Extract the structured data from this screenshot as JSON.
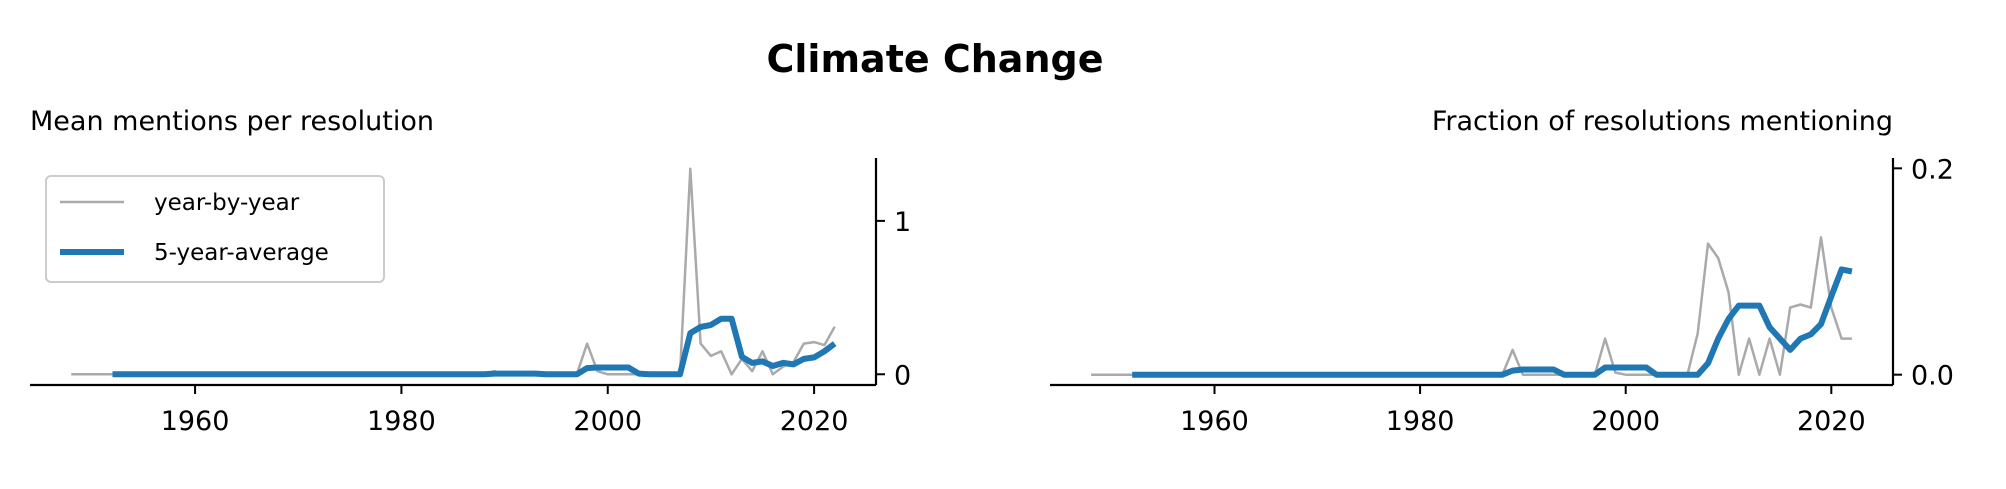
{
  "figure": {
    "title": "Climate Change"
  },
  "chart_data": [
    {
      "type": "line",
      "title": "Mean mentions per resolution",
      "xlabel": "",
      "ylabel": "",
      "xlim": [
        1944,
        2026
      ],
      "ylim": [
        -0.07,
        1.41
      ],
      "xticks": [
        1960,
        1980,
        2000,
        2020
      ],
      "yticks": [
        0,
        1
      ],
      "ytick_labels": [
        "0",
        "1"
      ],
      "y_axis_side": "right",
      "grid": false,
      "legend": {
        "placement": "top-left",
        "entries": [
          "year-by-year",
          "5-year-average"
        ]
      },
      "series": [
        {
          "name": "year-by-year",
          "color": "#aaaaaa",
          "x": [
            1948,
            1950,
            1952,
            1954,
            1956,
            1958,
            1960,
            1962,
            1964,
            1966,
            1968,
            1970,
            1972,
            1974,
            1976,
            1978,
            1980,
            1982,
            1984,
            1986,
            1988,
            1989,
            1990,
            1991,
            1992,
            1993,
            1994,
            1995,
            1996,
            1997,
            1998,
            1999,
            2000,
            2001,
            2002,
            2003,
            2004,
            2005,
            2006,
            2007,
            2008,
            2009,
            2010,
            2011,
            2012,
            2013,
            2014,
            2015,
            2016,
            2017,
            2018,
            2019,
            2020,
            2021,
            2022
          ],
          "y": [
            0,
            0,
            0,
            0,
            0,
            0,
            0,
            0,
            0,
            0,
            0,
            0,
            0,
            0,
            0,
            0,
            0,
            0,
            0,
            0,
            0,
            0.02,
            0,
            0,
            0,
            0,
            0,
            0,
            0,
            0,
            0.2,
            0.02,
            0,
            0,
            0,
            0,
            0,
            0,
            0,
            0,
            1.34,
            0.2,
            0.12,
            0.15,
            0,
            0.1,
            0.02,
            0.15,
            0,
            0.05,
            0.08,
            0.2,
            0.21,
            0.19,
            0.31
          ]
        },
        {
          "name": "5-year-average",
          "color": "#1f77b4",
          "x": [
            1952,
            1954,
            1956,
            1958,
            1960,
            1962,
            1964,
            1966,
            1968,
            1970,
            1972,
            1974,
            1976,
            1978,
            1980,
            1982,
            1984,
            1986,
            1988,
            1989,
            1990,
            1991,
            1992,
            1993,
            1994,
            1995,
            1996,
            1997,
            1998,
            1999,
            2000,
            2001,
            2002,
            2003,
            2004,
            2005,
            2006,
            2007,
            2008,
            2009,
            2010,
            2011,
            2012,
            2013,
            2014,
            2015,
            2016,
            2017,
            2018,
            2019,
            2020,
            2021,
            2022
          ],
          "y": [
            0,
            0,
            0,
            0,
            0,
            0,
            0,
            0,
            0,
            0,
            0,
            0,
            0,
            0,
            0,
            0,
            0,
            0,
            0,
            0.004,
            0.004,
            0.004,
            0.004,
            0.004,
            0,
            0,
            0,
            0,
            0.04,
            0.044,
            0.044,
            0.044,
            0.044,
            0.004,
            0,
            0,
            0,
            0,
            0.268,
            0.308,
            0.322,
            0.362,
            0.362,
            0.114,
            0.074,
            0.084,
            0.054,
            0.074,
            0.064,
            0.1,
            0.11,
            0.15,
            0.2
          ]
        }
      ]
    },
    {
      "type": "line",
      "title": "Fraction of resolutions mentioning",
      "xlabel": "",
      "ylabel": "",
      "xlim": [
        1944,
        2026
      ],
      "ylim": [
        -0.01,
        0.21
      ],
      "xticks": [
        1960,
        1980,
        2000,
        2020
      ],
      "yticks": [
        0.0,
        0.2
      ],
      "ytick_labels": [
        "0.0",
        "0.2"
      ],
      "y_axis_side": "right",
      "grid": false,
      "series": [
        {
          "name": "year-by-year",
          "color": "#aaaaaa",
          "x": [
            1948,
            1950,
            1952,
            1954,
            1956,
            1958,
            1960,
            1962,
            1964,
            1966,
            1968,
            1970,
            1972,
            1974,
            1976,
            1978,
            1980,
            1982,
            1984,
            1986,
            1988,
            1989,
            1990,
            1991,
            1992,
            1993,
            1994,
            1995,
            1996,
            1997,
            1998,
            1999,
            2000,
            2001,
            2002,
            2003,
            2004,
            2005,
            2006,
            2007,
            2008,
            2009,
            2010,
            2011,
            2012,
            2013,
            2014,
            2015,
            2016,
            2017,
            2018,
            2019,
            2020,
            2021,
            2022
          ],
          "y": [
            0,
            0,
            0,
            0,
            0,
            0,
            0,
            0,
            0,
            0,
            0,
            0,
            0,
            0,
            0,
            0,
            0,
            0,
            0,
            0,
            0,
            0.024,
            0,
            0,
            0,
            0,
            0,
            0,
            0,
            0,
            0.035,
            0.002,
            0,
            0,
            0,
            0,
            0,
            0,
            0,
            0.04,
            0.127,
            0.113,
            0.08,
            0,
            0.035,
            0,
            0.035,
            0,
            0.065,
            0.068,
            0.065,
            0.133,
            0.065,
            0.035,
            0.035
          ]
        },
        {
          "name": "5-year-average",
          "color": "#1f77b4",
          "x": [
            1952,
            1954,
            1956,
            1958,
            1960,
            1962,
            1964,
            1966,
            1968,
            1970,
            1972,
            1974,
            1976,
            1978,
            1980,
            1982,
            1984,
            1986,
            1988,
            1989,
            1990,
            1991,
            1992,
            1993,
            1994,
            1995,
            1996,
            1997,
            1998,
            1999,
            2000,
            2001,
            2002,
            2003,
            2004,
            2005,
            2006,
            2007,
            2008,
            2009,
            2010,
            2011,
            2012,
            2013,
            2014,
            2015,
            2016,
            2017,
            2018,
            2019,
            2020,
            2021,
            2022
          ],
          "y": [
            0,
            0,
            0,
            0,
            0,
            0,
            0,
            0,
            0,
            0,
            0,
            0,
            0,
            0,
            0,
            0,
            0,
            0,
            0,
            0.004,
            0.005,
            0.005,
            0.005,
            0.005,
            0,
            0,
            0,
            0,
            0.007,
            0.007,
            0.007,
            0.007,
            0.007,
            0,
            0,
            0,
            0,
            0,
            0.011,
            0.035,
            0.054,
            0.067,
            0.067,
            0.067,
            0.046,
            0.035,
            0.024,
            0.035,
            0.039,
            0.049,
            0.076,
            0.102,
            0.1
          ]
        }
      ]
    }
  ]
}
